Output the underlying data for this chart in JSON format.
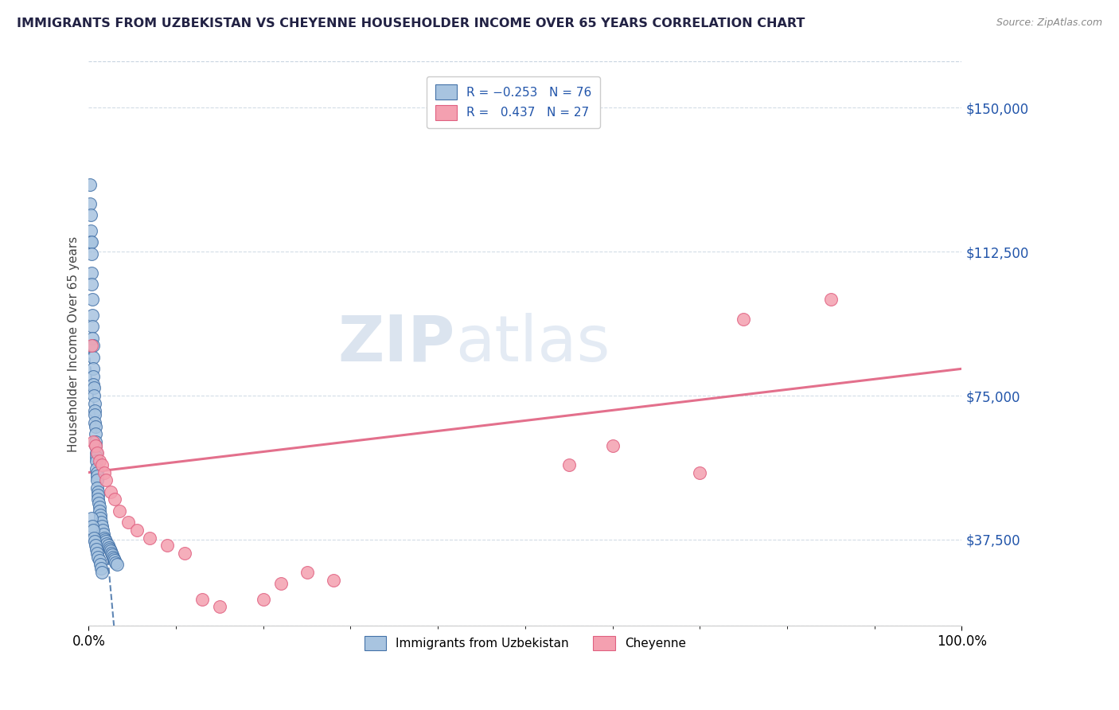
{
  "title": "IMMIGRANTS FROM UZBEKISTAN VS CHEYENNE HOUSEHOLDER INCOME OVER 65 YEARS CORRELATION CHART",
  "source": "Source: ZipAtlas.com",
  "ylabel": "Householder Income Over 65 years",
  "ytick_labels": [
    "$37,500",
    "$75,000",
    "$112,500",
    "$150,000"
  ],
  "ytick_values": [
    37500,
    75000,
    112500,
    150000
  ],
  "ymax": 162000,
  "ymin": 15000,
  "xmin": 0.0,
  "xmax": 100.0,
  "color_blue": "#a8c4e0",
  "color_pink": "#f4a0b0",
  "trendline_blue_color": "#4472a8",
  "trendline_pink_color": "#e06080",
  "watermark": "ZIPatlas",
  "watermark_color_zip": "#b0c8e0",
  "watermark_color_atlas": "#c0d0e8",
  "blue_x": [
    0.15,
    0.15,
    0.2,
    0.2,
    0.25,
    0.3,
    0.3,
    0.35,
    0.35,
    0.4,
    0.4,
    0.45,
    0.45,
    0.5,
    0.5,
    0.5,
    0.55,
    0.55,
    0.6,
    0.6,
    0.65,
    0.65,
    0.7,
    0.7,
    0.75,
    0.75,
    0.8,
    0.8,
    0.85,
    0.85,
    0.9,
    0.9,
    0.95,
    0.95,
    1.0,
    1.0,
    1.05,
    1.1,
    1.1,
    1.15,
    1.2,
    1.25,
    1.3,
    1.35,
    1.4,
    1.5,
    1.6,
    1.7,
    1.8,
    1.9,
    2.0,
    2.1,
    2.2,
    2.3,
    2.4,
    2.5,
    2.6,
    2.7,
    2.8,
    2.9,
    3.0,
    3.1,
    3.2,
    0.3,
    0.4,
    0.5,
    0.6,
    0.7,
    0.8,
    0.9,
    1.0,
    1.1,
    1.2,
    1.3,
    1.4,
    1.5
  ],
  "blue_y": [
    130000,
    125000,
    122000,
    118000,
    115000,
    115000,
    112000,
    107000,
    104000,
    100000,
    96000,
    93000,
    90000,
    88000,
    85000,
    82000,
    80000,
    78000,
    77000,
    75000,
    73000,
    71000,
    70000,
    68000,
    67000,
    65000,
    63000,
    62000,
    60000,
    59000,
    58000,
    56000,
    55000,
    54000,
    53000,
    51000,
    50000,
    49000,
    48000,
    47000,
    46000,
    45000,
    44000,
    43000,
    42000,
    41000,
    40000,
    39000,
    38000,
    37500,
    37000,
    36500,
    36000,
    35500,
    35000,
    34500,
    34000,
    33500,
    33000,
    32500,
    32000,
    31500,
    31000,
    43000,
    41000,
    40000,
    38000,
    37000,
    36000,
    35000,
    34000,
    33000,
    32000,
    31000,
    30000,
    29000
  ],
  "pink_x": [
    0.3,
    0.5,
    0.8,
    1.0,
    1.2,
    1.5,
    1.8,
    2.0,
    2.5,
    3.0,
    3.5,
    4.5,
    5.5,
    7.0,
    9.0,
    11.0,
    13.0,
    15.0,
    20.0,
    22.0,
    25.0,
    28.0,
    55.0,
    60.0,
    70.0,
    75.0,
    85.0
  ],
  "pink_y": [
    88000,
    63000,
    62000,
    60000,
    58000,
    57000,
    55000,
    53000,
    50000,
    48000,
    45000,
    42000,
    40000,
    38000,
    36000,
    34000,
    22000,
    20000,
    22000,
    26000,
    29000,
    27000,
    57000,
    62000,
    55000,
    95000,
    100000
  ],
  "pink_trendline_x": [
    0.0,
    100.0
  ],
  "pink_trendline_y": [
    55000,
    82000
  ]
}
